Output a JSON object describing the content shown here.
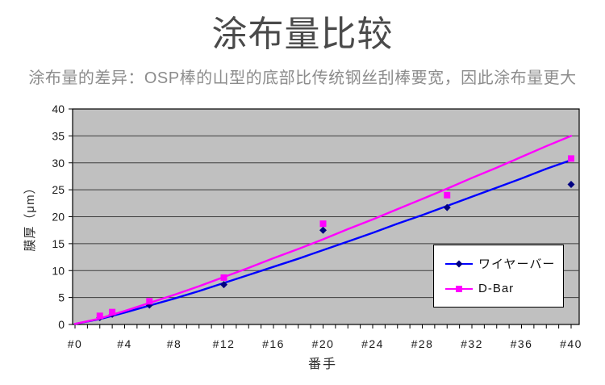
{
  "title": "涂布量比较",
  "subtitle": "涂布量的差异：OSP棒的山型的底部比传统钢丝刮棒要宽，因此涂布量更大",
  "chart_data": {
    "type": "scatter",
    "title": "涂布量比较",
    "xlabel": "番手",
    "ylabel": "膜厚（μm）",
    "xlim": [
      0,
      40
    ],
    "ylim": [
      0,
      40
    ],
    "x_minor_tick_step": 1,
    "x_tick_labels": [
      {
        "v": 0,
        "label": "#0"
      },
      {
        "v": 4,
        "label": "#4"
      },
      {
        "v": 8,
        "label": "#8"
      },
      {
        "v": 12,
        "label": "#12"
      },
      {
        "v": 16,
        "label": "#16"
      },
      {
        "v": 20,
        "label": "#20"
      },
      {
        "v": 24,
        "label": "#24"
      },
      {
        "v": 28,
        "label": "#28"
      },
      {
        "v": 32,
        "label": "#32"
      },
      {
        "v": 36,
        "label": "#36"
      },
      {
        "v": 40,
        "label": "#40"
      }
    ],
    "y_ticks": [
      0,
      5,
      10,
      15,
      20,
      25,
      30,
      35,
      40
    ],
    "grid": "horizontal",
    "legend_position": "inside-right",
    "plot_bg_color": "#c0c0c0",
    "gridline_color": "#3d3d3d",
    "axis_color": "#000000",
    "tick_label_color": "#1a1a1a",
    "series": [
      {
        "name": "ワイヤーバー",
        "marker": "diamond",
        "marker_color": "#000080",
        "line_color": "#0000ff",
        "points": [
          [
            2,
            1.3
          ],
          [
            3,
            1.9
          ],
          [
            6,
            3.6
          ],
          [
            12,
            7.4
          ],
          [
            20,
            17.5
          ],
          [
            30,
            21.7
          ],
          [
            40,
            26.0
          ]
        ],
        "trend": [
          [
            0,
            0.1
          ],
          [
            2,
            1.0
          ],
          [
            4,
            2.2
          ],
          [
            6,
            3.5
          ],
          [
            8,
            4.8
          ],
          [
            10,
            6.2
          ],
          [
            12,
            7.7
          ],
          [
            14,
            9.2
          ],
          [
            16,
            10.7
          ],
          [
            18,
            12.2
          ],
          [
            20,
            13.8
          ],
          [
            22,
            15.4
          ],
          [
            24,
            17.0
          ],
          [
            26,
            18.7
          ],
          [
            28,
            20.3
          ],
          [
            30,
            22.0
          ],
          [
            32,
            23.7
          ],
          [
            34,
            25.4
          ],
          [
            36,
            27.1
          ],
          [
            38,
            28.9
          ],
          [
            40,
            30.5
          ]
        ]
      },
      {
        "name": "D-Bar",
        "marker": "square",
        "marker_color": "#ff00ff",
        "line_color": "#ff00ff",
        "points": [
          [
            2,
            1.6
          ],
          [
            3,
            2.3
          ],
          [
            6,
            4.3
          ],
          [
            12,
            8.7
          ],
          [
            20,
            18.7
          ],
          [
            30,
            24.0
          ],
          [
            40,
            30.8
          ]
        ],
        "trend": [
          [
            0,
            0.1
          ],
          [
            2,
            1.1
          ],
          [
            4,
            2.5
          ],
          [
            6,
            4.0
          ],
          [
            8,
            5.5
          ],
          [
            10,
            7.1
          ],
          [
            12,
            8.8
          ],
          [
            14,
            10.5
          ],
          [
            16,
            12.3
          ],
          [
            18,
            14.0
          ],
          [
            20,
            15.8
          ],
          [
            22,
            17.7
          ],
          [
            24,
            19.5
          ],
          [
            26,
            21.4
          ],
          [
            28,
            23.3
          ],
          [
            30,
            25.2
          ],
          [
            32,
            27.2
          ],
          [
            34,
            29.1
          ],
          [
            36,
            31.1
          ],
          [
            38,
            33.1
          ],
          [
            40,
            35.0
          ]
        ]
      }
    ]
  }
}
